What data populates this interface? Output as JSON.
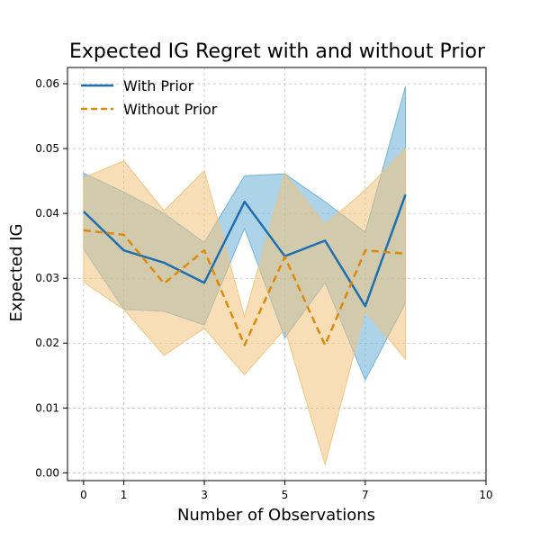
{
  "chart_data": {
    "type": "line",
    "title": "Expected IG Regret with and without Prior",
    "xlabel": "Number of Observations",
    "ylabel": "Expected IG",
    "xlim": [
      -0.4,
      10
    ],
    "ylim": [
      -0.0012,
      0.0625
    ],
    "x_ticks": [
      0,
      1,
      3,
      5,
      7,
      10
    ],
    "y_ticks": [
      0.0,
      0.01,
      0.02,
      0.03,
      0.04,
      0.05,
      0.06
    ],
    "y_tick_labels": [
      "0.00",
      "0.01",
      "0.02",
      "0.03",
      "0.04",
      "0.05",
      "0.06"
    ],
    "grid": true,
    "legend_position": "top-left",
    "x": [
      0,
      1,
      2,
      3,
      4,
      5,
      6,
      7,
      8
    ],
    "series": [
      {
        "name": "With Prior",
        "style": "solid",
        "color": "#1f6fb0",
        "band_color": "#6aaed6",
        "values": [
          0.0403,
          0.0343,
          0.0324,
          0.0293,
          0.0418,
          0.0334,
          0.0358,
          0.0257,
          0.0429
        ],
        "lower": [
          0.0345,
          0.0252,
          0.0249,
          0.0228,
          0.0377,
          0.0208,
          0.0293,
          0.0143,
          0.0262
        ],
        "upper": [
          0.0462,
          0.0433,
          0.04,
          0.0355,
          0.0458,
          0.0461,
          0.0418,
          0.0371,
          0.0596
        ]
      },
      {
        "name": "Without Prior",
        "style": "dashed",
        "color": "#dc8a0a",
        "band_color": "#f0c27a",
        "values": [
          0.0374,
          0.0367,
          0.0292,
          0.0343,
          0.0197,
          0.0333,
          0.0197,
          0.0343,
          0.0338
        ],
        "lower": [
          0.0294,
          0.0252,
          0.0181,
          0.0223,
          0.0151,
          0.0222,
          0.0013,
          0.025,
          0.0175
        ],
        "upper": [
          0.0455,
          0.0481,
          0.0404,
          0.0466,
          0.0241,
          0.0461,
          0.0383,
          0.0436,
          0.05
        ]
      }
    ]
  }
}
